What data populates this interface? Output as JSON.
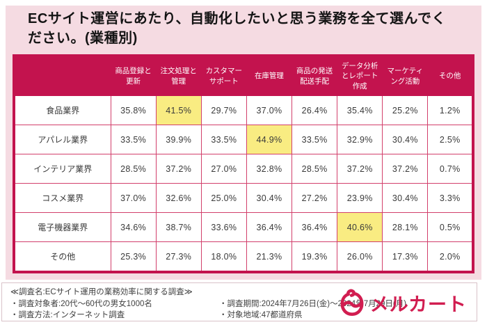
{
  "title": "ECサイト運営にあたり、自動化したいと思う業務を全て選んでく\nださい。(業種別)",
  "table": {
    "columns": [
      "商品登録と\n更新",
      "注文処理と\n管理",
      "カスタマー\nサポート",
      "在庫管理",
      "商品の発送\n配送手配",
      "データ分析\nとレポート\n作成",
      "マーケティ\nング活動",
      "その他"
    ],
    "rows": [
      {
        "label": "食品業界",
        "values": [
          "35.8%",
          "41.5%",
          "29.7%",
          "37.0%",
          "26.4%",
          "35.4%",
          "25.2%",
          "1.2%"
        ],
        "highlight": 1
      },
      {
        "label": "アパレル業界",
        "values": [
          "33.5%",
          "39.9%",
          "33.5%",
          "44.9%",
          "33.5%",
          "32.9%",
          "30.4%",
          "2.5%"
        ],
        "highlight": 3
      },
      {
        "label": "インテリア業界",
        "values": [
          "28.5%",
          "37.2%",
          "27.0%",
          "32.8%",
          "28.5%",
          "37.2%",
          "37.2%",
          "0.7%"
        ],
        "highlight": -1
      },
      {
        "label": "コスメ業界",
        "values": [
          "37.0%",
          "32.6%",
          "25.0%",
          "30.4%",
          "27.2%",
          "23.9%",
          "30.4%",
          "3.3%"
        ],
        "highlight": -1
      },
      {
        "label": "電子機器業界",
        "values": [
          "34.6%",
          "38.7%",
          "33.6%",
          "36.4%",
          "36.4%",
          "40.6%",
          "28.1%",
          "0.5%"
        ],
        "highlight": 5
      },
      {
        "label": "その他",
        "values": [
          "25.3%",
          "27.3%",
          "18.0%",
          "21.3%",
          "19.3%",
          "26.0%",
          "17.3%",
          "2.0%"
        ],
        "highlight": -1
      }
    ]
  },
  "chart_data": {
    "type": "table",
    "title": "ECサイト運営にあたり、自動化したいと思う業務を全て選んでください。(業種別)",
    "categories": [
      "商品登録と更新",
      "注文処理と管理",
      "カスタマーサポート",
      "在庫管理",
      "商品の発送配送手配",
      "データ分析とレポート作成",
      "マーケティング活動",
      "その他"
    ],
    "series": [
      {
        "name": "食品業界",
        "values": [
          35.8,
          41.5,
          29.7,
          37.0,
          26.4,
          35.4,
          25.2,
          1.2
        ]
      },
      {
        "name": "アパレル業界",
        "values": [
          33.5,
          39.9,
          33.5,
          44.9,
          33.5,
          32.9,
          30.4,
          2.5
        ]
      },
      {
        "name": "インテリア業界",
        "values": [
          28.5,
          37.2,
          27.0,
          32.8,
          28.5,
          37.2,
          37.2,
          0.7
        ]
      },
      {
        "name": "コスメ業界",
        "values": [
          37.0,
          32.6,
          25.0,
          30.4,
          27.2,
          23.9,
          30.4,
          3.3
        ]
      },
      {
        "name": "電子機器業界",
        "values": [
          34.6,
          38.7,
          33.6,
          36.4,
          36.4,
          40.6,
          28.1,
          0.5
        ]
      },
      {
        "name": "その他",
        "values": [
          25.3,
          27.3,
          18.0,
          21.3,
          19.3,
          26.0,
          17.3,
          2.0
        ]
      }
    ],
    "highlighted_cells": [
      {
        "row": "食品業界",
        "column": "注文処理と管理",
        "value": 41.5
      },
      {
        "row": "アパレル業界",
        "column": "在庫管理",
        "value": 44.9
      },
      {
        "row": "電子機器業界",
        "column": "データ分析とレポート作成",
        "value": 40.6
      }
    ],
    "unit": "%"
  },
  "footer": {
    "survey_name": "≪調査名:ECサイト運用の業務効率に関する調査≫",
    "lines": [
      {
        "left": "・調査対象者:20代〜60代の男女1000名",
        "right": "・調査期間:2024年7月26日(金)〜2024年7月29日(月)"
      },
      {
        "left": "・調査方法:インターネット調査",
        "right": "・対象地域:47都道府県"
      }
    ],
    "logo_text": "メルカート"
  },
  "colors": {
    "band_pink": "#f5dbe2",
    "header_crimson": "#c3134e",
    "cell_border": "#d23f6b",
    "highlight_yellow": "#f9ec82",
    "logo_crimson": "#d11d50",
    "text_dark": "#3a3a3a"
  }
}
